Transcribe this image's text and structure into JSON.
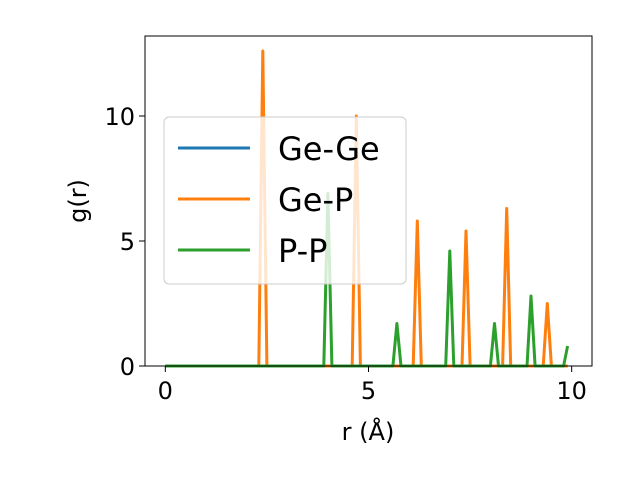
{
  "chart_data": {
    "type": "line",
    "xlabel": "r (Å)",
    "ylabel": "g(r)",
    "xlim": [
      -0.5,
      10.5
    ],
    "ylim": [
      0,
      13.2
    ],
    "xticks": [
      0,
      5,
      10
    ],
    "yticks": [
      0,
      5,
      10
    ],
    "xtick_labels": [
      "0",
      "5",
      "10"
    ],
    "ytick_labels": [
      "0",
      "5",
      "10"
    ],
    "grid": false,
    "legend_position": "center-left",
    "series": [
      {
        "name": "Ge-Ge",
        "color": "#1f77b4",
        "x": [
          0,
          9.9
        ],
        "y": [
          0,
          0
        ]
      },
      {
        "name": "Ge-P",
        "color": "#ff7f0e",
        "x": [
          0,
          2.3,
          2.4,
          2.5,
          4.6,
          4.7,
          4.8,
          6.1,
          6.2,
          6.3,
          7.3,
          7.4,
          7.5,
          8.3,
          8.4,
          8.5,
          9.3,
          9.4,
          9.5,
          9.9
        ],
        "y": [
          0,
          0,
          12.6,
          0,
          0,
          10.0,
          0,
          0,
          5.8,
          0,
          0,
          5.4,
          0,
          0,
          6.3,
          0,
          0,
          2.5,
          0,
          0
        ]
      },
      {
        "name": "P-P",
        "color": "#2ca02c",
        "x": [
          0,
          3.9,
          4.0,
          4.1,
          5.6,
          5.7,
          5.8,
          6.9,
          7.0,
          7.1,
          8.0,
          8.1,
          8.2,
          8.9,
          9.0,
          9.1,
          9.8,
          9.9
        ],
        "y": [
          0,
          0,
          6.9,
          0,
          0,
          1.7,
          0,
          0,
          4.6,
          0,
          0,
          1.7,
          0,
          0,
          2.8,
          0,
          0,
          0.8
        ]
      }
    ]
  }
}
